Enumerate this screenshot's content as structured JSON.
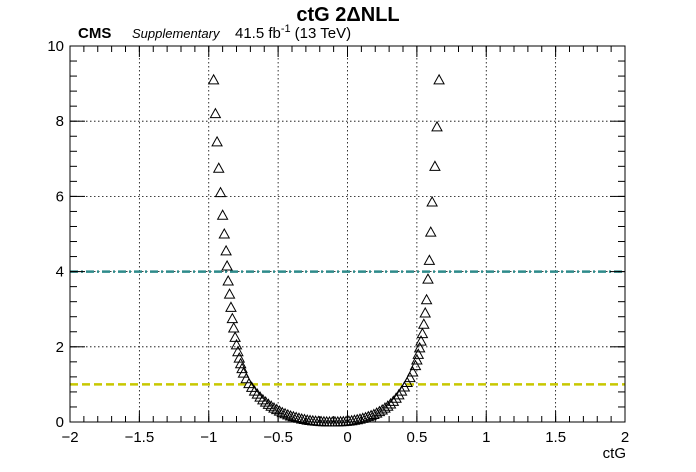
{
  "header": {
    "experiment": "CMS",
    "tag": "Supplementary",
    "lumi_value": "41.5 fb",
    "lumi_exp": "-1",
    "energy": "(13 TeV)"
  },
  "chart_data": {
    "type": "scatter",
    "title": "ctG 2ΔNLL",
    "xlabel": "ctG",
    "ylabel": "",
    "xlim": [
      -2,
      2
    ],
    "ylim": [
      0,
      10
    ],
    "x_ticks": [
      -2,
      -1.5,
      -1,
      -0.5,
      0,
      0.5,
      1,
      1.5,
      2
    ],
    "x_tick_labels": [
      "−2",
      "−1.5",
      "−1",
      "−0.5",
      "0",
      "0.5",
      "1",
      "1.5",
      "2"
    ],
    "y_ticks": [
      0,
      2,
      4,
      6,
      8,
      10
    ],
    "y_tick_labels": [
      "0",
      "2",
      "4",
      "6",
      "8",
      "10"
    ],
    "grid": true,
    "marker": "open-triangle",
    "reference_lines": [
      {
        "y": 4,
        "color": "#2e8b8b",
        "style": "dash-dot"
      },
      {
        "y": 1,
        "color": "#c8c800",
        "style": "dashed"
      }
    ],
    "series": [
      {
        "color": "#000000",
        "points": [
          [
            -0.965,
            9.1
          ],
          [
            -0.952,
            8.2
          ],
          [
            -0.94,
            7.45
          ],
          [
            -0.928,
            6.75
          ],
          [
            -0.915,
            6.1
          ],
          [
            -0.9,
            5.5
          ],
          [
            -0.888,
            5.0
          ],
          [
            -0.875,
            4.55
          ],
          [
            -0.868,
            4.15
          ],
          [
            -0.86,
            3.75
          ],
          [
            -0.85,
            3.4
          ],
          [
            -0.84,
            3.05
          ],
          [
            -0.83,
            2.75
          ],
          [
            -0.82,
            2.5
          ],
          [
            -0.81,
            2.25
          ],
          [
            -0.8,
            2.05
          ],
          [
            -0.79,
            1.87
          ],
          [
            -0.78,
            1.7
          ],
          [
            -0.77,
            1.55
          ],
          [
            -0.76,
            1.42
          ],
          [
            -0.75,
            1.3
          ],
          [
            -0.73,
            1.15
          ],
          [
            -0.71,
            1.02
          ],
          [
            -0.69,
            0.92
          ],
          [
            -0.67,
            0.82
          ],
          [
            -0.65,
            0.74
          ],
          [
            -0.63,
            0.66
          ],
          [
            -0.61,
            0.59
          ],
          [
            -0.59,
            0.53
          ],
          [
            -0.57,
            0.47
          ],
          [
            -0.55,
            0.42
          ],
          [
            -0.53,
            0.37
          ],
          [
            -0.51,
            0.33
          ],
          [
            -0.49,
            0.29
          ],
          [
            -0.47,
            0.25
          ],
          [
            -0.45,
            0.22
          ],
          [
            -0.43,
            0.19
          ],
          [
            -0.41,
            0.16
          ],
          [
            -0.39,
            0.14
          ],
          [
            -0.37,
            0.12
          ],
          [
            -0.35,
            0.1
          ],
          [
            -0.33,
            0.08
          ],
          [
            -0.31,
            0.065
          ],
          [
            -0.29,
            0.05
          ],
          [
            -0.27,
            0.04
          ],
          [
            -0.25,
            0.03
          ],
          [
            -0.23,
            0.022
          ],
          [
            -0.21,
            0.015
          ],
          [
            -0.19,
            0.01
          ],
          [
            -0.17,
            0.006
          ],
          [
            -0.15,
            0.003
          ],
          [
            -0.13,
            0.001
          ],
          [
            -0.11,
            0.0
          ],
          [
            -0.09,
            0.001
          ],
          [
            -0.07,
            0.003
          ],
          [
            -0.05,
            0.006
          ],
          [
            -0.03,
            0.01
          ],
          [
            -0.01,
            0.016
          ],
          [
            0.01,
            0.024
          ],
          [
            0.03,
            0.034
          ],
          [
            0.05,
            0.046
          ],
          [
            0.07,
            0.06
          ],
          [
            0.09,
            0.076
          ],
          [
            0.11,
            0.095
          ],
          [
            0.13,
            0.117
          ],
          [
            0.15,
            0.142
          ],
          [
            0.17,
            0.17
          ],
          [
            0.19,
            0.2
          ],
          [
            0.21,
            0.235
          ],
          [
            0.23,
            0.275
          ],
          [
            0.25,
            0.32
          ],
          [
            0.27,
            0.37
          ],
          [
            0.29,
            0.42
          ],
          [
            0.31,
            0.48
          ],
          [
            0.33,
            0.55
          ],
          [
            0.35,
            0.63
          ],
          [
            0.37,
            0.72
          ],
          [
            0.39,
            0.82
          ],
          [
            0.41,
            0.93
          ],
          [
            0.43,
            1.05
          ],
          [
            0.45,
            1.18
          ],
          [
            0.47,
            1.33
          ],
          [
            0.49,
            1.5
          ],
          [
            0.5,
            1.65
          ],
          [
            0.51,
            1.8
          ],
          [
            0.52,
            1.97
          ],
          [
            0.53,
            2.15
          ],
          [
            0.54,
            2.35
          ],
          [
            0.55,
            2.6
          ],
          [
            0.56,
            2.9
          ],
          [
            0.57,
            3.25
          ],
          [
            0.58,
            3.8
          ],
          [
            0.59,
            4.3
          ],
          [
            0.6,
            5.05
          ],
          [
            0.61,
            5.85
          ],
          [
            0.63,
            6.8
          ],
          [
            0.645,
            7.85
          ],
          [
            0.66,
            9.1
          ]
        ]
      }
    ]
  }
}
